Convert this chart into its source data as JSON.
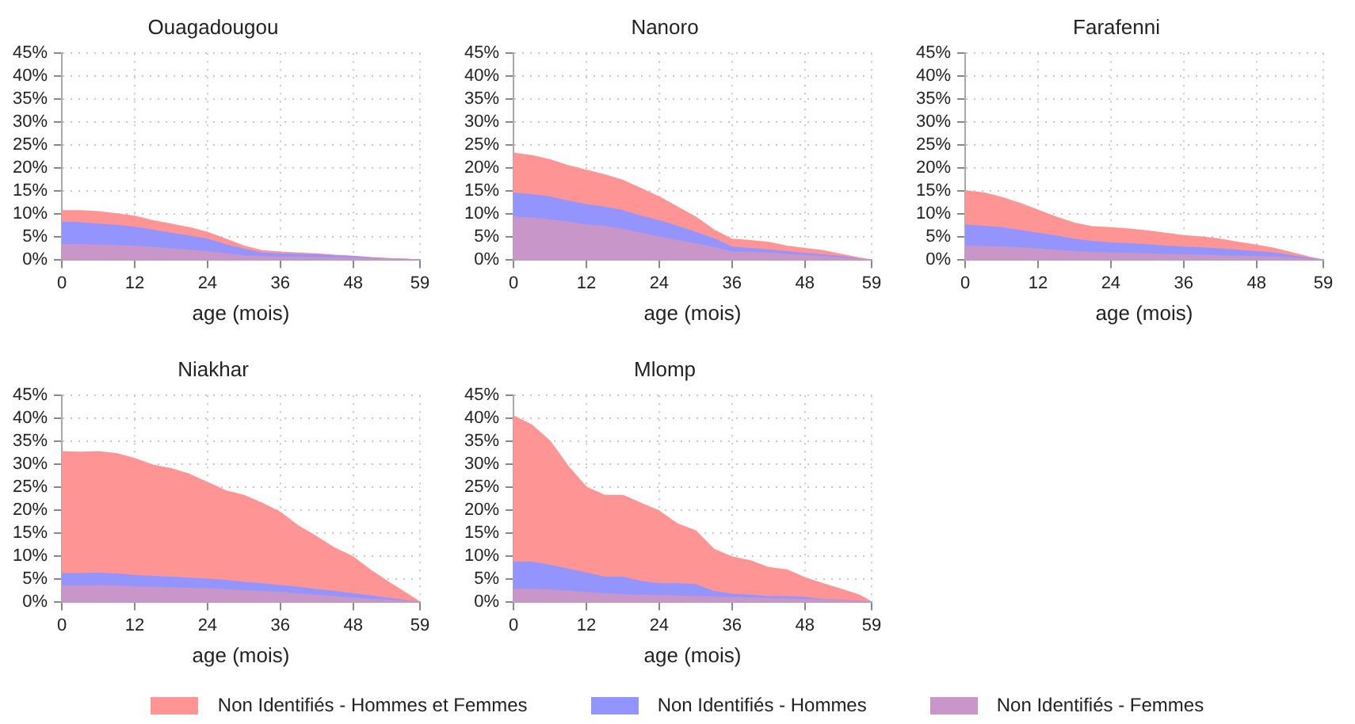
{
  "chart_data": [
    {
      "type": "area",
      "title": "Ouagadougou",
      "xlabel": "age (mois)",
      "legend": "bottom",
      "grid": true,
      "xlim": [
        0,
        59
      ],
      "xticks": [
        0,
        12,
        24,
        36,
        48,
        59
      ],
      "ylim": [
        0,
        45
      ],
      "yticks": [
        {
          "value": 0,
          "label": "0%"
        },
        {
          "value": 5,
          "label": "5%"
        },
        {
          "value": 10,
          "label": "10%"
        },
        {
          "value": 15,
          "label": "15%"
        },
        {
          "value": 20,
          "label": "20%"
        },
        {
          "value": 25,
          "label": "25%"
        },
        {
          "value": 30,
          "label": "30%"
        },
        {
          "value": 35,
          "label": "35%"
        },
        {
          "value": 40,
          "label": "40%"
        },
        {
          "value": 45,
          "label": "45%"
        }
      ],
      "x": [
        0,
        3,
        6,
        9,
        12,
        15,
        18,
        21,
        24,
        27,
        30,
        33,
        36,
        39,
        42,
        45,
        48,
        51,
        54,
        57,
        59
      ],
      "series": [
        {
          "name": "Non Identifiés - Hommes et Femmes",
          "color": "#ff9494",
          "values": [
            10.7,
            10.7,
            10.5,
            10,
            9.5,
            8.5,
            7.8,
            7,
            6,
            4.5,
            3,
            2,
            1.7,
            1.5,
            1.3,
            1,
            0.8,
            0.5,
            0.3,
            0.1,
            0
          ]
        },
        {
          "name": "Non Identifiés - Hommes",
          "color": "#9494ff",
          "values": [
            8.2,
            8.1,
            7.8,
            7.5,
            7.1,
            6.5,
            5.8,
            5.2,
            4.5,
            3.3,
            2.3,
            1.5,
            1.3,
            1.2,
            1.1,
            0.9,
            0.7,
            0.4,
            0.2,
            0.1,
            0
          ]
        },
        {
          "name": "Non Identifiés - Femmes",
          "color": "#c896c8",
          "values": [
            3.3,
            3.3,
            3.2,
            3.1,
            3,
            2.7,
            2.4,
            2.1,
            1.8,
            1.3,
            0.9,
            0.7,
            0.6,
            0.6,
            0.5,
            0.5,
            0.4,
            0.3,
            0.2,
            0.1,
            0
          ]
        }
      ]
    },
    {
      "type": "area",
      "title": "Nanoro",
      "xlabel": "age (mois)",
      "grid": true,
      "xlim": [
        0,
        59
      ],
      "xticks": [
        0,
        12,
        24,
        36,
        48,
        59
      ],
      "ylim": [
        0,
        45
      ],
      "yticks": [
        {
          "value": 0,
          "label": "0%"
        },
        {
          "value": 5,
          "label": "5%"
        },
        {
          "value": 10,
          "label": "10%"
        },
        {
          "value": 15,
          "label": "15%"
        },
        {
          "value": 20,
          "label": "20%"
        },
        {
          "value": 25,
          "label": "25%"
        },
        {
          "value": 30,
          "label": "30%"
        },
        {
          "value": 35,
          "label": "35%"
        },
        {
          "value": 40,
          "label": "40%"
        },
        {
          "value": 45,
          "label": "45%"
        }
      ],
      "x": [
        0,
        3,
        6,
        9,
        12,
        15,
        18,
        21,
        24,
        27,
        30,
        33,
        36,
        39,
        42,
        45,
        48,
        51,
        54,
        57,
        59
      ],
      "series": [
        {
          "color": "#ff9494",
          "values": [
            23.2,
            22.7,
            21.8,
            20.5,
            19.5,
            18.5,
            17.3,
            15.5,
            13.7,
            11.5,
            9.3,
            6.5,
            4.5,
            4.2,
            3.8,
            3,
            2.5,
            2,
            1.2,
            0.4,
            0
          ]
        },
        {
          "color": "#9494ff",
          "values": [
            14.5,
            14.2,
            13.7,
            12.8,
            12,
            11.5,
            10.7,
            9.5,
            8.5,
            7.3,
            6,
            4.6,
            2.8,
            2.5,
            2.2,
            1.8,
            1.4,
            1.1,
            0.7,
            0.2,
            0
          ]
        },
        {
          "color": "#c896c8",
          "values": [
            9.3,
            9.1,
            8.7,
            8.2,
            7.6,
            7.3,
            6.6,
            5.8,
            5,
            4.2,
            3.5,
            2.7,
            1.7,
            1.6,
            1.5,
            1.2,
            1,
            0.7,
            0.4,
            0.1,
            0
          ]
        }
      ]
    },
    {
      "type": "area",
      "title": "Farafenni",
      "xlabel": "age (mois)",
      "grid": true,
      "xlim": [
        0,
        59
      ],
      "xticks": [
        0,
        12,
        24,
        36,
        48,
        59
      ],
      "ylim": [
        0,
        45
      ],
      "yticks": [
        {
          "value": 0,
          "label": "0%"
        },
        {
          "value": 5,
          "label": "5%"
        },
        {
          "value": 10,
          "label": "10%"
        },
        {
          "value": 15,
          "label": "15%"
        },
        {
          "value": 20,
          "label": "20%"
        },
        {
          "value": 25,
          "label": "25%"
        },
        {
          "value": 30,
          "label": "30%"
        },
        {
          "value": 35,
          "label": "35%"
        },
        {
          "value": 40,
          "label": "40%"
        },
        {
          "value": 45,
          "label": "45%"
        }
      ],
      "x": [
        0,
        3,
        6,
        9,
        12,
        15,
        18,
        21,
        24,
        27,
        30,
        33,
        36,
        39,
        42,
        45,
        48,
        51,
        54,
        57,
        59
      ],
      "series": [
        {
          "color": "#ff9494",
          "values": [
            15,
            14.6,
            13.6,
            12.3,
            10.8,
            9.3,
            8,
            7.2,
            7,
            6.7,
            6.3,
            5.8,
            5.3,
            5,
            4.5,
            3.8,
            3.2,
            2.5,
            1.5,
            0.5,
            0
          ]
        },
        {
          "color": "#9494ff",
          "values": [
            7.6,
            7.3,
            7,
            6.4,
            5.8,
            5.2,
            4.5,
            4,
            3.7,
            3.5,
            3.3,
            3,
            2.8,
            2.6,
            2.4,
            2.1,
            1.8,
            1.5,
            0.9,
            0.3,
            0
          ]
        },
        {
          "color": "#c896c8",
          "values": [
            3,
            2.9,
            2.8,
            2.6,
            2.4,
            2.1,
            1.8,
            1.6,
            1.5,
            1.4,
            1.3,
            1.2,
            1.1,
            1,
            0.9,
            0.8,
            0.7,
            0.6,
            0.4,
            0.1,
            0
          ]
        }
      ]
    },
    {
      "type": "area",
      "title": "Niakhar",
      "xlabel": "age (mois)",
      "grid": true,
      "xlim": [
        0,
        59
      ],
      "xticks": [
        0,
        12,
        24,
        36,
        48,
        59
      ],
      "ylim": [
        0,
        45
      ],
      "yticks": [
        {
          "value": 0,
          "label": "0%"
        },
        {
          "value": 5,
          "label": "5%"
        },
        {
          "value": 10,
          "label": "10%"
        },
        {
          "value": 15,
          "label": "15%"
        },
        {
          "value": 20,
          "label": "20%"
        },
        {
          "value": 25,
          "label": "25%"
        },
        {
          "value": 30,
          "label": "30%"
        },
        {
          "value": 35,
          "label": "35%"
        },
        {
          "value": 40,
          "label": "40%"
        },
        {
          "value": 45,
          "label": "45%"
        }
      ],
      "x": [
        0,
        3,
        6,
        9,
        12,
        15,
        18,
        21,
        24,
        27,
        30,
        33,
        36,
        39,
        42,
        45,
        48,
        51,
        54,
        57,
        59
      ],
      "series": [
        {
          "color": "#ff9494",
          "values": [
            32.7,
            32.6,
            32.7,
            32.3,
            31.2,
            29.8,
            29,
            27.8,
            26,
            24.2,
            23.2,
            21.5,
            19.5,
            16.5,
            14.2,
            11.7,
            9.8,
            6.8,
            4.2,
            1.7,
            0
          ]
        },
        {
          "color": "#9494ff",
          "values": [
            6.2,
            6.2,
            6.3,
            6.1,
            5.8,
            5.6,
            5.4,
            5.2,
            5,
            4.7,
            4.3,
            4,
            3.6,
            3.2,
            2.7,
            2.3,
            1.8,
            1.3,
            0.8,
            0.3,
            0
          ]
        },
        {
          "color": "#c896c8",
          "values": [
            3.5,
            3.5,
            3.6,
            3.5,
            3.3,
            3.2,
            3.1,
            3,
            2.9,
            2.7,
            2.5,
            2.3,
            2.1,
            1.8,
            1.5,
            1.2,
            0.9,
            0.6,
            0.4,
            0.2,
            0
          ]
        }
      ]
    },
    {
      "type": "area",
      "title": "Mlomp",
      "xlabel": "age (mois)",
      "grid": true,
      "xlim": [
        0,
        59
      ],
      "xticks": [
        0,
        12,
        24,
        36,
        48,
        59
      ],
      "ylim": [
        0,
        45
      ],
      "yticks": [
        {
          "value": 0,
          "label": "0%"
        },
        {
          "value": 5,
          "label": "5%"
        },
        {
          "value": 10,
          "label": "10%"
        },
        {
          "value": 15,
          "label": "15%"
        },
        {
          "value": 20,
          "label": "20%"
        },
        {
          "value": 25,
          "label": "25%"
        },
        {
          "value": 30,
          "label": "30%"
        },
        {
          "value": 35,
          "label": "35%"
        },
        {
          "value": 40,
          "label": "40%"
        },
        {
          "value": 45,
          "label": "45%"
        }
      ],
      "x": [
        0,
        3,
        6,
        9,
        12,
        15,
        18,
        21,
        24,
        27,
        30,
        33,
        36,
        39,
        42,
        45,
        48,
        51,
        54,
        57,
        59
      ],
      "series": [
        {
          "color": "#ff9494",
          "values": [
            40.5,
            38.5,
            35,
            29.5,
            25,
            23.2,
            23.2,
            21.5,
            19.8,
            17,
            15.5,
            11.5,
            9.8,
            9,
            7.5,
            7,
            5.3,
            4,
            2.8,
            1.5,
            0
          ]
        },
        {
          "color": "#9494ff",
          "values": [
            8.7,
            8.7,
            8,
            7.2,
            6.3,
            5.4,
            5.4,
            4.5,
            4,
            4,
            3.8,
            2.3,
            1.7,
            1.5,
            1.2,
            1.2,
            1,
            0.6,
            0.4,
            0.2,
            0
          ]
        },
        {
          "color": "#c896c8",
          "values": [
            2.8,
            2.8,
            2.6,
            2.4,
            2.1,
            1.8,
            1.6,
            1.5,
            1.4,
            1.3,
            1.2,
            1.1,
            1,
            0.9,
            0.8,
            0.7,
            0.6,
            0.5,
            0.3,
            0.1,
            0
          ]
        }
      ]
    }
  ]
}
